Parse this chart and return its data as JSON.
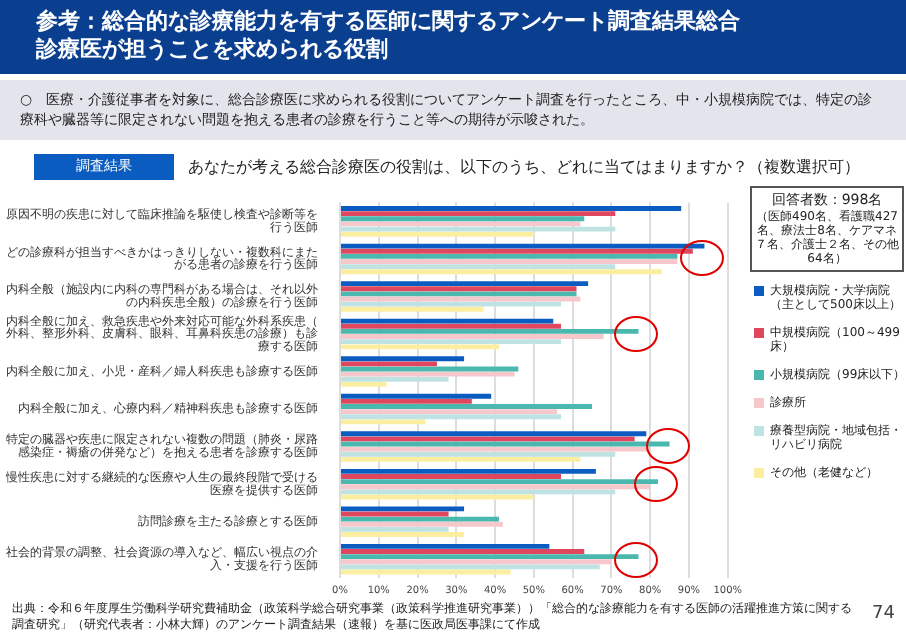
{
  "chart_data": {
    "type": "bar",
    "orientation": "horizontal",
    "title": "参考：総合的な診療能力を有する医師に関するアンケート調査結果総合診療医が担うことを求められる役割",
    "subtitle": "○　医療・介護従事者を対象に、総合診療医に求められる役割についてアンケート調査を行ったところ、中・小規模病院では、特定の診療科や臓器等に限定されない問題を抱える患者の診療を行うこと等への期待が示唆された。",
    "annotations": [
      "調査結果",
      "あなたが考える総合診療医の役割は、以下のうち、どれに当てはまりますか？（複数選択可）",
      "回答者数：998名（医師490名、看護職427名、療法士8名、ケアマネ７名、介護士２名、その他64名）",
      "出典：令和６年度厚生労働科学研究費補助金（政策科学総合研究事業（政策科学推進研究事業））「総合的な診療能力を有する医師の活躍推進方策に関する調査研究」（研究代表者：小林大輝）のアンケート調査結果（速報）を基に医政局医事課にて作成",
      "74"
    ],
    "categories": [
      "原因不明の疾患に対して臨床推論を駆使し検査や診断等を行う医師",
      "どの診療科が担当すべきかはっきりしない・複数科にまたがる患者の診療を行う医師",
      "内科全般（施設内に内科の専門科がある場合は、それ以外の内科疾患全般）の診療を行う医師",
      "内科全般に加え、救急疾患や外来対応可能な外科系疾患（外科、整形外科、皮膚科、眼科、耳鼻科疾患の診療）も診療する医師",
      "内科全般に加え、小児・産科／婦人科疾患も診療する医師",
      "内科全般に加え、心療内科／精神科疾患も診療する医師",
      "特定の臓器や疾患に限定されない複数の問題（肺炎・尿路感染症・褥瘡の併発など）を抱える患者を診療する医師",
      "慢性疾患に対する継続的な医療や人生の最終段階で受ける医療を提供する医師",
      "訪問診療を主たる診療とする医師",
      "社会的背景の調整、社会資源の導入など、幅広い視点の介入・支援を行う医師"
    ],
    "series": [
      {
        "name": "大規模病院・大学病院（主として500床以上）",
        "color": "#0b5cc0",
        "values": [
          88,
          94,
          64,
          55,
          32,
          39,
          79,
          66,
          32,
          54
        ]
      },
      {
        "name": "中規模病院（100～499床）",
        "color": "#e0475f",
        "values": [
          71,
          91,
          61,
          57,
          25,
          34,
          76,
          57,
          28,
          63
        ]
      },
      {
        "name": "小規模病院（99床以下）",
        "color": "#4bb8b0",
        "values": [
          63,
          87,
          61,
          77,
          46,
          65,
          85,
          82,
          41,
          77
        ]
      },
      {
        "name": "診療所",
        "color": "#f6c8cc",
        "values": [
          62,
          87,
          62,
          68,
          45,
          56,
          80,
          80,
          42,
          70
        ]
      },
      {
        "name": "療養型病院・地域包括・リハビリ病院",
        "color": "#bfe3e3",
        "values": [
          71,
          71,
          57,
          57,
          28,
          57,
          71,
          71,
          28,
          67
        ]
      },
      {
        "name": "その他（老健など）",
        "color": "#fbeea0",
        "values": [
          50,
          83,
          37,
          41,
          12,
          22,
          62,
          50,
          32,
          44
        ]
      }
    ],
    "xlim": [
      0,
      100
    ],
    "xticks": [
      {
        "value": 0,
        "label": "0%"
      },
      {
        "value": 10,
        "label": "10%"
      },
      {
        "value": 20,
        "label": "20%"
      },
      {
        "value": 30,
        "label": "30%"
      },
      {
        "value": 40,
        "label": "40%"
      },
      {
        "value": 50,
        "label": "50%"
      },
      {
        "value": 60,
        "label": "60%"
      },
      {
        "value": 70,
        "label": "70%"
      },
      {
        "value": 80,
        "label": "80%"
      },
      {
        "value": 90,
        "label": "90%"
      },
      {
        "value": 100,
        "label": "100%"
      }
    ],
    "grid": "x",
    "legend": "right"
  }
}
